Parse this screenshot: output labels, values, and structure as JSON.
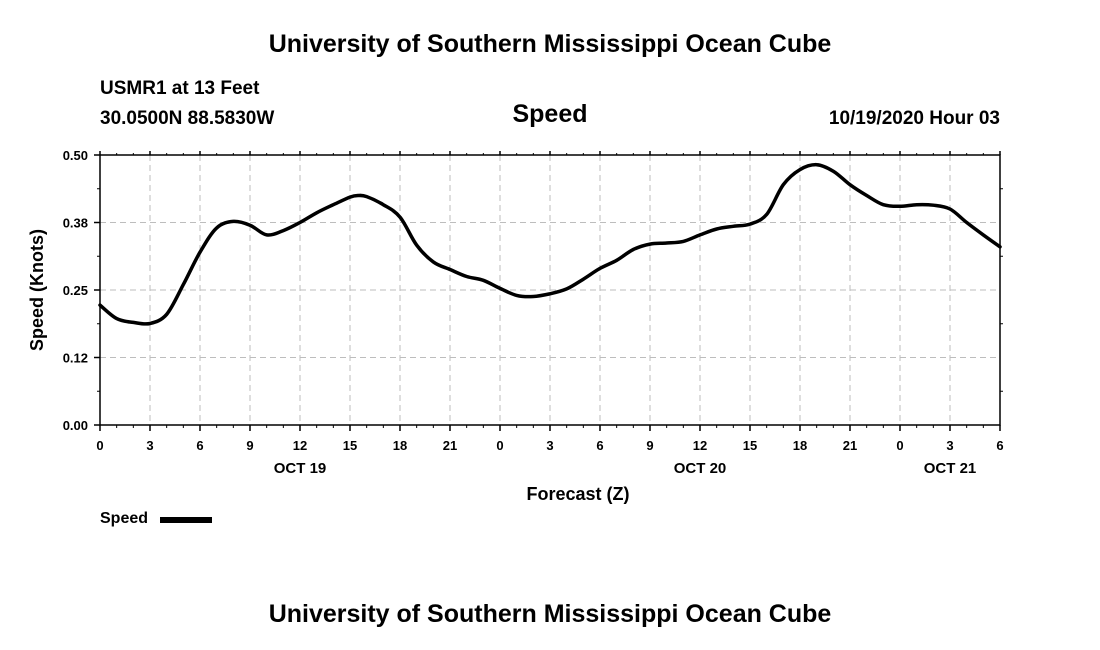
{
  "header": {
    "title": "University of Southern Mississippi Ocean Cube",
    "station": "USMR1 at 13 Feet",
    "coords": "30.0500N 88.5830W",
    "parameter": "Speed",
    "run_time": "10/19/2020 Hour 03"
  },
  "footer": {
    "title": "University of Southern Mississippi Ocean Cube"
  },
  "legend": {
    "label": "Speed",
    "color": "#000000"
  },
  "chart_data": {
    "type": "line",
    "title": "Speed",
    "xlabel": "Forecast (Z)",
    "ylabel": "Speed (Knots)",
    "ylim": [
      0,
      0.5
    ],
    "xlim": [
      0,
      54
    ],
    "grid": true,
    "legend_position": "bottom-left",
    "y_ticks": [
      "0.00",
      "0.12",
      "0.25",
      "0.38",
      "0.50"
    ],
    "x_tick_labels": [
      "0",
      "3",
      "6",
      "9",
      "12",
      "15",
      "18",
      "21",
      "0",
      "3",
      "6",
      "9",
      "12",
      "15",
      "18",
      "21",
      "0",
      "3",
      "6"
    ],
    "day_labels": [
      {
        "label": "OCT 19",
        "hour": 12
      },
      {
        "label": "OCT 20",
        "hour": 36
      },
      {
        "label": "OCT 21",
        "hour": 51
      }
    ],
    "x_unit_note": "x values are forecast hours from 2020-10-19 00Z",
    "series": [
      {
        "name": "Speed",
        "color": "#000000",
        "x": [
          0,
          1,
          2,
          3,
          4,
          5,
          6,
          7,
          8,
          9,
          10,
          11,
          12,
          13,
          14,
          15,
          15.5,
          16,
          17,
          18,
          19,
          20,
          21,
          22,
          23,
          24,
          25,
          26,
          27,
          28,
          29,
          30,
          31,
          32,
          33,
          34,
          35,
          36,
          37,
          38,
          39,
          40,
          41,
          42,
          43,
          44,
          45,
          46,
          47,
          48,
          49,
          50,
          51,
          52,
          53,
          54
        ],
        "values": [
          0.222,
          0.197,
          0.19,
          0.188,
          0.205,
          0.26,
          0.32,
          0.365,
          0.377,
          0.37,
          0.352,
          0.36,
          0.375,
          0.393,
          0.408,
          0.422,
          0.425,
          0.423,
          0.408,
          0.385,
          0.333,
          0.302,
          0.288,
          0.275,
          0.268,
          0.253,
          0.24,
          0.238,
          0.243,
          0.252,
          0.27,
          0.29,
          0.305,
          0.325,
          0.335,
          0.337,
          0.34,
          0.352,
          0.363,
          0.368,
          0.372,
          0.39,
          0.445,
          0.473,
          0.482,
          0.47,
          0.445,
          0.425,
          0.408,
          0.405,
          0.408,
          0.407,
          0.4,
          0.375,
          0.352,
          0.33
        ]
      }
    ]
  }
}
